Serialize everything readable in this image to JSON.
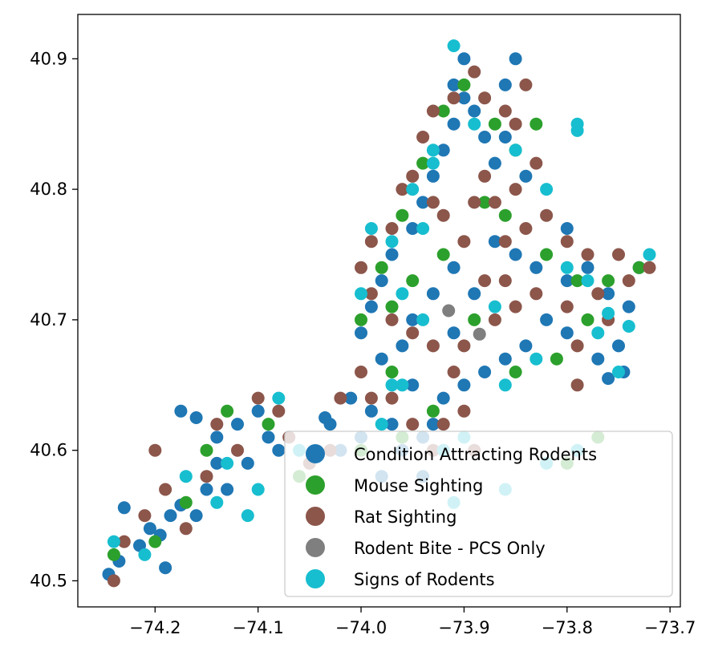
{
  "chart_data": {
    "type": "scatter",
    "title": "",
    "xlabel": "",
    "ylabel": "",
    "xlim": [
      -74.275,
      -73.69
    ],
    "ylim": [
      40.48,
      40.934
    ],
    "x_ticks": [
      {
        "value": -74.2,
        "label": "−74.2"
      },
      {
        "value": -74.1,
        "label": "−74.1"
      },
      {
        "value": -74.0,
        "label": "−74.0"
      },
      {
        "value": -73.9,
        "label": "−73.9"
      },
      {
        "value": -73.8,
        "label": "−73.8"
      },
      {
        "value": -73.7,
        "label": "−73.7"
      }
    ],
    "y_ticks": [
      {
        "value": 40.5,
        "label": "40.5"
      },
      {
        "value": 40.6,
        "label": "40.6"
      },
      {
        "value": 40.7,
        "label": "40.7"
      },
      {
        "value": 40.8,
        "label": "40.8"
      },
      {
        "value": 40.9,
        "label": "40.9"
      }
    ],
    "legend_position": "bottom-right",
    "series": [
      {
        "name": "Condition Attracting Rodents",
        "color": "#1f77b4",
        "points": [
          [
            -74.245,
            40.505
          ],
          [
            -74.235,
            40.515
          ],
          [
            -74.23,
            40.556
          ],
          [
            -74.215,
            40.527
          ],
          [
            -74.205,
            40.54
          ],
          [
            -74.195,
            40.535
          ],
          [
            -74.185,
            40.55
          ],
          [
            -74.175,
            40.558
          ],
          [
            -74.19,
            40.51
          ],
          [
            -74.16,
            40.55
          ],
          [
            -74.15,
            40.57
          ],
          [
            -74.14,
            40.59
          ],
          [
            -74.175,
            40.63
          ],
          [
            -74.16,
            40.625
          ],
          [
            -74.14,
            40.61
          ],
          [
            -74.12,
            40.62
          ],
          [
            -74.1,
            40.63
          ],
          [
            -74.09,
            40.61
          ],
          [
            -74.08,
            40.6
          ],
          [
            -74.11,
            40.59
          ],
          [
            -74.13,
            40.57
          ],
          [
            -74.03,
            40.62
          ],
          [
            -74.02,
            40.6
          ],
          [
            -74.0,
            40.61
          ],
          [
            -73.99,
            40.63
          ],
          [
            -73.97,
            40.62
          ],
          [
            -73.96,
            40.6
          ],
          [
            -73.94,
            40.61
          ],
          [
            -73.93,
            40.62
          ],
          [
            -73.92,
            40.64
          ],
          [
            -73.95,
            40.65
          ],
          [
            -73.98,
            40.67
          ],
          [
            -74.0,
            40.69
          ],
          [
            -73.99,
            40.71
          ],
          [
            -73.98,
            40.73
          ],
          [
            -73.97,
            40.75
          ],
          [
            -73.95,
            40.77
          ],
          [
            -73.94,
            40.79
          ],
          [
            -73.93,
            40.81
          ],
          [
            -73.92,
            40.83
          ],
          [
            -73.91,
            40.85
          ],
          [
            -73.9,
            40.87
          ],
          [
            -73.89,
            40.86
          ],
          [
            -73.88,
            40.84
          ],
          [
            -73.87,
            40.82
          ],
          [
            -73.86,
            40.88
          ],
          [
            -73.85,
            40.9
          ],
          [
            -73.9,
            40.9
          ],
          [
            -73.91,
            40.88
          ],
          [
            -73.86,
            40.84
          ],
          [
            -73.84,
            40.81
          ],
          [
            -73.87,
            40.76
          ],
          [
            -73.85,
            40.75
          ],
          [
            -73.83,
            40.74
          ],
          [
            -73.8,
            40.73
          ],
          [
            -73.78,
            40.74
          ],
          [
            -73.76,
            40.72
          ],
          [
            -73.74,
            40.71
          ],
          [
            -73.73,
            40.74
          ],
          [
            -73.75,
            40.68
          ],
          [
            -73.77,
            40.67
          ],
          [
            -73.8,
            40.69
          ],
          [
            -73.82,
            40.7
          ],
          [
            -73.84,
            40.68
          ],
          [
            -73.86,
            40.67
          ],
          [
            -73.88,
            40.66
          ],
          [
            -73.9,
            40.65
          ],
          [
            -73.91,
            40.69
          ],
          [
            -73.89,
            40.72
          ],
          [
            -73.91,
            40.74
          ],
          [
            -73.93,
            40.72
          ],
          [
            -73.95,
            40.7
          ],
          [
            -73.96,
            40.68
          ],
          [
            -74.01,
            40.64
          ],
          [
            -74.035,
            40.625
          ],
          [
            -73.94,
            40.58
          ],
          [
            -73.98,
            40.58
          ],
          [
            -73.76,
            40.655
          ],
          [
            -73.745,
            40.66
          ],
          [
            -73.8,
            40.77
          ]
        ]
      },
      {
        "name": "Mouse Sighting",
        "color": "#2ca02c",
        "points": [
          [
            -74.24,
            40.52
          ],
          [
            -74.2,
            40.53
          ],
          [
            -74.17,
            40.56
          ],
          [
            -74.15,
            40.6
          ],
          [
            -74.13,
            40.63
          ],
          [
            -74.09,
            40.62
          ],
          [
            -74.06,
            40.58
          ],
          [
            -74.0,
            40.6
          ],
          [
            -73.96,
            40.61
          ],
          [
            -73.93,
            40.63
          ],
          [
            -73.97,
            40.66
          ],
          [
            -74.0,
            40.7
          ],
          [
            -73.98,
            40.74
          ],
          [
            -73.96,
            40.78
          ],
          [
            -73.94,
            40.82
          ],
          [
            -73.92,
            40.86
          ],
          [
            -73.9,
            40.88
          ],
          [
            -73.87,
            40.85
          ],
          [
            -73.85,
            40.83
          ],
          [
            -73.88,
            40.79
          ],
          [
            -73.86,
            40.78
          ],
          [
            -73.82,
            40.75
          ],
          [
            -73.79,
            40.73
          ],
          [
            -73.76,
            40.73
          ],
          [
            -73.73,
            40.74
          ],
          [
            -73.78,
            40.7
          ],
          [
            -73.81,
            40.67
          ],
          [
            -73.85,
            40.66
          ],
          [
            -73.89,
            40.7
          ],
          [
            -73.92,
            40.75
          ],
          [
            -73.95,
            40.73
          ],
          [
            -73.97,
            40.71
          ],
          [
            -73.83,
            40.85
          ],
          [
            -73.8,
            40.59
          ],
          [
            -73.77,
            40.61
          ]
        ]
      },
      {
        "name": "Rat Sighting",
        "color": "#8c564b",
        "points": [
          [
            -74.24,
            40.5
          ],
          [
            -74.23,
            40.53
          ],
          [
            -74.21,
            40.55
          ],
          [
            -74.2,
            40.6
          ],
          [
            -74.19,
            40.57
          ],
          [
            -74.17,
            40.54
          ],
          [
            -74.15,
            40.58
          ],
          [
            -74.14,
            40.62
          ],
          [
            -74.12,
            40.6
          ],
          [
            -74.1,
            40.64
          ],
          [
            -74.08,
            40.63
          ],
          [
            -74.07,
            40.61
          ],
          [
            -74.05,
            40.59
          ],
          [
            -74.03,
            40.6
          ],
          [
            -74.02,
            40.64
          ],
          [
            -74.0,
            40.66
          ],
          [
            -73.99,
            40.64
          ],
          [
            -73.97,
            40.64
          ],
          [
            -73.95,
            40.62
          ],
          [
            -73.93,
            40.6
          ],
          [
            -73.92,
            40.62
          ],
          [
            -73.9,
            40.63
          ],
          [
            -73.91,
            40.66
          ],
          [
            -73.93,
            40.68
          ],
          [
            -73.95,
            40.69
          ],
          [
            -73.97,
            40.7
          ],
          [
            -73.99,
            40.72
          ],
          [
            -74.0,
            40.74
          ],
          [
            -73.99,
            40.76
          ],
          [
            -73.97,
            40.77
          ],
          [
            -73.96,
            40.8
          ],
          [
            -73.95,
            40.81
          ],
          [
            -73.93,
            40.79
          ],
          [
            -73.94,
            40.84
          ],
          [
            -73.93,
            40.86
          ],
          [
            -73.91,
            40.87
          ],
          [
            -73.89,
            40.89
          ],
          [
            -73.88,
            40.87
          ],
          [
            -73.86,
            40.86
          ],
          [
            -73.85,
            40.85
          ],
          [
            -73.84,
            40.88
          ],
          [
            -73.83,
            40.82
          ],
          [
            -73.85,
            40.8
          ],
          [
            -73.88,
            40.81
          ],
          [
            -73.87,
            40.79
          ],
          [
            -73.86,
            40.76
          ],
          [
            -73.84,
            40.77
          ],
          [
            -73.82,
            40.78
          ],
          [
            -73.8,
            40.76
          ],
          [
            -73.78,
            40.75
          ],
          [
            -73.77,
            40.72
          ],
          [
            -73.75,
            40.75
          ],
          [
            -73.74,
            40.73
          ],
          [
            -73.72,
            40.74
          ],
          [
            -73.76,
            40.7
          ],
          [
            -73.79,
            40.68
          ],
          [
            -73.8,
            40.71
          ],
          [
            -73.83,
            40.72
          ],
          [
            -73.85,
            40.71
          ],
          [
            -73.87,
            40.7
          ],
          [
            -73.9,
            40.68
          ],
          [
            -73.88,
            40.73
          ],
          [
            -73.86,
            40.73
          ],
          [
            -73.9,
            40.76
          ],
          [
            -73.92,
            40.78
          ],
          [
            -73.79,
            40.65
          ],
          [
            -73.89,
            40.79
          ],
          [
            -73.89,
            40.6
          ]
        ]
      },
      {
        "name": "Rodent Bite - PCS Only",
        "color": "#7f7f7f",
        "points": [
          [
            -73.915,
            40.707
          ],
          [
            -73.885,
            40.689
          ]
        ]
      },
      {
        "name": "Signs of Rodents",
        "color": "#17becf",
        "points": [
          [
            -74.24,
            40.53
          ],
          [
            -74.21,
            40.52
          ],
          [
            -74.17,
            40.58
          ],
          [
            -74.14,
            40.56
          ],
          [
            -74.13,
            40.59
          ],
          [
            -74.11,
            40.55
          ],
          [
            -74.1,
            40.57
          ],
          [
            -74.08,
            40.64
          ],
          [
            -74.06,
            40.6
          ],
          [
            -73.98,
            40.62
          ],
          [
            -73.97,
            40.65
          ],
          [
            -73.94,
            40.7
          ],
          [
            -73.96,
            40.72
          ],
          [
            -73.97,
            40.76
          ],
          [
            -73.95,
            40.8
          ],
          [
            -73.93,
            40.83
          ],
          [
            -73.91,
            40.91
          ],
          [
            -73.89,
            40.85
          ],
          [
            -73.85,
            40.83
          ],
          [
            -73.82,
            40.8
          ],
          [
            -73.79,
            40.845
          ],
          [
            -73.79,
            40.85
          ],
          [
            -73.8,
            40.74
          ],
          [
            -73.77,
            40.69
          ],
          [
            -73.74,
            40.695
          ],
          [
            -73.75,
            40.66
          ],
          [
            -73.72,
            40.75
          ],
          [
            -73.83,
            40.67
          ],
          [
            -73.86,
            40.65
          ],
          [
            -73.87,
            40.71
          ],
          [
            -73.9,
            40.61
          ],
          [
            -73.92,
            40.6
          ],
          [
            -73.91,
            40.56
          ],
          [
            -73.96,
            40.65
          ],
          [
            -74.0,
            40.72
          ],
          [
            -73.99,
            40.77
          ],
          [
            -73.86,
            40.57
          ],
          [
            -73.82,
            40.59
          ],
          [
            -73.79,
            40.6
          ],
          [
            -73.93,
            40.82
          ],
          [
            -73.94,
            40.77
          ],
          [
            -73.78,
            40.73
          ],
          [
            -73.76,
            40.705
          ]
        ]
      }
    ]
  }
}
